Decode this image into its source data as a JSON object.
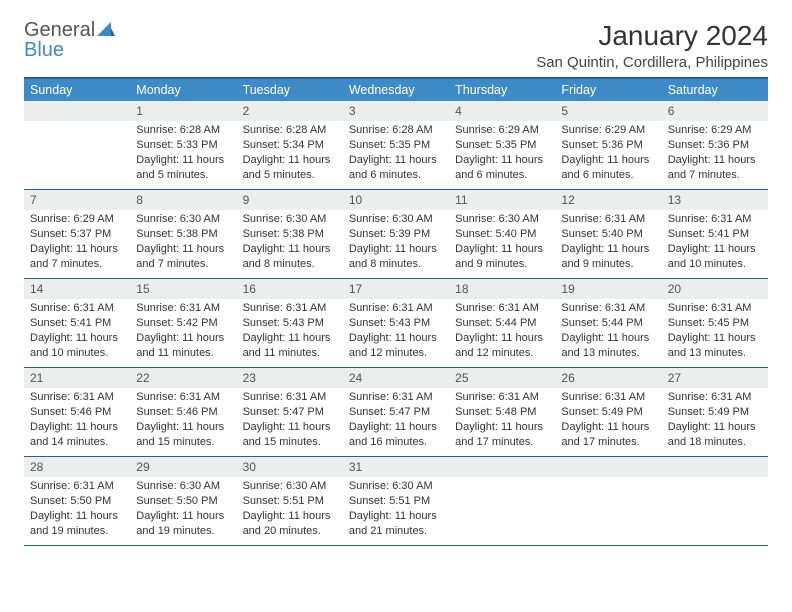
{
  "logo": {
    "word1": "General",
    "word2": "Blue"
  },
  "title": "January 2024",
  "location": "San Quintin, Cordillera, Philippines",
  "colors": {
    "header_bg": "#3e8ac6",
    "header_text": "#ffffff",
    "border": "#275e8a",
    "daynum_bg": "#eceded",
    "text": "#333333",
    "logo_gray": "#555555",
    "logo_blue": "#3e8ac6",
    "page_bg": "#ffffff"
  },
  "typography": {
    "title_fontsize": 28,
    "location_fontsize": 15,
    "dayhead_fontsize": 12.5,
    "daynum_fontsize": 12,
    "body_fontsize": 11,
    "font_family": "Arial"
  },
  "day_names": [
    "Sunday",
    "Monday",
    "Tuesday",
    "Wednesday",
    "Thursday",
    "Friday",
    "Saturday"
  ],
  "weeks": [
    [
      {
        "n": "",
        "sunrise": "",
        "sunset": "",
        "daylight": ""
      },
      {
        "n": "1",
        "sunrise": "Sunrise: 6:28 AM",
        "sunset": "Sunset: 5:33 PM",
        "daylight": "Daylight: 11 hours and 5 minutes."
      },
      {
        "n": "2",
        "sunrise": "Sunrise: 6:28 AM",
        "sunset": "Sunset: 5:34 PM",
        "daylight": "Daylight: 11 hours and 5 minutes."
      },
      {
        "n": "3",
        "sunrise": "Sunrise: 6:28 AM",
        "sunset": "Sunset: 5:35 PM",
        "daylight": "Daylight: 11 hours and 6 minutes."
      },
      {
        "n": "4",
        "sunrise": "Sunrise: 6:29 AM",
        "sunset": "Sunset: 5:35 PM",
        "daylight": "Daylight: 11 hours and 6 minutes."
      },
      {
        "n": "5",
        "sunrise": "Sunrise: 6:29 AM",
        "sunset": "Sunset: 5:36 PM",
        "daylight": "Daylight: 11 hours and 6 minutes."
      },
      {
        "n": "6",
        "sunrise": "Sunrise: 6:29 AM",
        "sunset": "Sunset: 5:36 PM",
        "daylight": "Daylight: 11 hours and 7 minutes."
      }
    ],
    [
      {
        "n": "7",
        "sunrise": "Sunrise: 6:29 AM",
        "sunset": "Sunset: 5:37 PM",
        "daylight": "Daylight: 11 hours and 7 minutes."
      },
      {
        "n": "8",
        "sunrise": "Sunrise: 6:30 AM",
        "sunset": "Sunset: 5:38 PM",
        "daylight": "Daylight: 11 hours and 7 minutes."
      },
      {
        "n": "9",
        "sunrise": "Sunrise: 6:30 AM",
        "sunset": "Sunset: 5:38 PM",
        "daylight": "Daylight: 11 hours and 8 minutes."
      },
      {
        "n": "10",
        "sunrise": "Sunrise: 6:30 AM",
        "sunset": "Sunset: 5:39 PM",
        "daylight": "Daylight: 11 hours and 8 minutes."
      },
      {
        "n": "11",
        "sunrise": "Sunrise: 6:30 AM",
        "sunset": "Sunset: 5:40 PM",
        "daylight": "Daylight: 11 hours and 9 minutes."
      },
      {
        "n": "12",
        "sunrise": "Sunrise: 6:31 AM",
        "sunset": "Sunset: 5:40 PM",
        "daylight": "Daylight: 11 hours and 9 minutes."
      },
      {
        "n": "13",
        "sunrise": "Sunrise: 6:31 AM",
        "sunset": "Sunset: 5:41 PM",
        "daylight": "Daylight: 11 hours and 10 minutes."
      }
    ],
    [
      {
        "n": "14",
        "sunrise": "Sunrise: 6:31 AM",
        "sunset": "Sunset: 5:41 PM",
        "daylight": "Daylight: 11 hours and 10 minutes."
      },
      {
        "n": "15",
        "sunrise": "Sunrise: 6:31 AM",
        "sunset": "Sunset: 5:42 PM",
        "daylight": "Daylight: 11 hours and 11 minutes."
      },
      {
        "n": "16",
        "sunrise": "Sunrise: 6:31 AM",
        "sunset": "Sunset: 5:43 PM",
        "daylight": "Daylight: 11 hours and 11 minutes."
      },
      {
        "n": "17",
        "sunrise": "Sunrise: 6:31 AM",
        "sunset": "Sunset: 5:43 PM",
        "daylight": "Daylight: 11 hours and 12 minutes."
      },
      {
        "n": "18",
        "sunrise": "Sunrise: 6:31 AM",
        "sunset": "Sunset: 5:44 PM",
        "daylight": "Daylight: 11 hours and 12 minutes."
      },
      {
        "n": "19",
        "sunrise": "Sunrise: 6:31 AM",
        "sunset": "Sunset: 5:44 PM",
        "daylight": "Daylight: 11 hours and 13 minutes."
      },
      {
        "n": "20",
        "sunrise": "Sunrise: 6:31 AM",
        "sunset": "Sunset: 5:45 PM",
        "daylight": "Daylight: 11 hours and 13 minutes."
      }
    ],
    [
      {
        "n": "21",
        "sunrise": "Sunrise: 6:31 AM",
        "sunset": "Sunset: 5:46 PM",
        "daylight": "Daylight: 11 hours and 14 minutes."
      },
      {
        "n": "22",
        "sunrise": "Sunrise: 6:31 AM",
        "sunset": "Sunset: 5:46 PM",
        "daylight": "Daylight: 11 hours and 15 minutes."
      },
      {
        "n": "23",
        "sunrise": "Sunrise: 6:31 AM",
        "sunset": "Sunset: 5:47 PM",
        "daylight": "Daylight: 11 hours and 15 minutes."
      },
      {
        "n": "24",
        "sunrise": "Sunrise: 6:31 AM",
        "sunset": "Sunset: 5:47 PM",
        "daylight": "Daylight: 11 hours and 16 minutes."
      },
      {
        "n": "25",
        "sunrise": "Sunrise: 6:31 AM",
        "sunset": "Sunset: 5:48 PM",
        "daylight": "Daylight: 11 hours and 17 minutes."
      },
      {
        "n": "26",
        "sunrise": "Sunrise: 6:31 AM",
        "sunset": "Sunset: 5:49 PM",
        "daylight": "Daylight: 11 hours and 17 minutes."
      },
      {
        "n": "27",
        "sunrise": "Sunrise: 6:31 AM",
        "sunset": "Sunset: 5:49 PM",
        "daylight": "Daylight: 11 hours and 18 minutes."
      }
    ],
    [
      {
        "n": "28",
        "sunrise": "Sunrise: 6:31 AM",
        "sunset": "Sunset: 5:50 PM",
        "daylight": "Daylight: 11 hours and 19 minutes."
      },
      {
        "n": "29",
        "sunrise": "Sunrise: 6:30 AM",
        "sunset": "Sunset: 5:50 PM",
        "daylight": "Daylight: 11 hours and 19 minutes."
      },
      {
        "n": "30",
        "sunrise": "Sunrise: 6:30 AM",
        "sunset": "Sunset: 5:51 PM",
        "daylight": "Daylight: 11 hours and 20 minutes."
      },
      {
        "n": "31",
        "sunrise": "Sunrise: 6:30 AM",
        "sunset": "Sunset: 5:51 PM",
        "daylight": "Daylight: 11 hours and 21 minutes."
      },
      {
        "n": "",
        "sunrise": "",
        "sunset": "",
        "daylight": ""
      },
      {
        "n": "",
        "sunrise": "",
        "sunset": "",
        "daylight": ""
      },
      {
        "n": "",
        "sunrise": "",
        "sunset": "",
        "daylight": ""
      }
    ]
  ]
}
